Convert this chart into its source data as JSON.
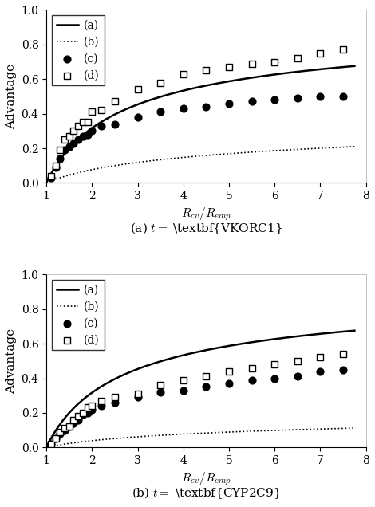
{
  "fig_width": 4.7,
  "fig_height": 6.36,
  "dpi": 100,
  "subplot_a": {
    "title": "(a) $t =$ \\textbf{VKORC1}",
    "ylabel": "Advantage",
    "xlabel": "$R_{cv}/R_{emp}$",
    "xlim": [
      1,
      8
    ],
    "ylim": [
      0,
      1
    ],
    "xticks": [
      1,
      2,
      3,
      4,
      5,
      6,
      7,
      8
    ],
    "yticks": [
      0,
      0.2,
      0.4,
      0.6,
      0.8,
      1.0
    ],
    "curve_a_x": [
      1.0,
      1.05,
      1.1,
      1.15,
      1.2,
      1.3,
      1.4,
      1.5,
      1.6,
      1.7,
      1.8,
      1.9,
      2.0,
      2.2,
      2.5,
      3.0,
      3.5,
      4.0,
      4.5,
      5.0,
      5.5,
      6.0,
      6.5,
      7.0,
      7.5
    ],
    "curve_b_x": [
      1.0,
      1.05,
      1.1,
      1.15,
      1.2,
      1.3,
      1.4,
      1.5,
      1.6,
      1.7,
      1.8,
      1.9,
      2.0,
      2.2,
      2.5,
      3.0,
      3.5,
      4.0,
      4.5,
      5.0,
      5.5,
      6.0,
      6.5,
      7.0,
      7.5
    ],
    "scatter_c_x": [
      1.1,
      1.2,
      1.3,
      1.4,
      1.5,
      1.6,
      1.7,
      1.8,
      1.9,
      2.0,
      2.2,
      2.5,
      3.0,
      3.5,
      4.0,
      4.5,
      5.0,
      5.5,
      6.0,
      6.5,
      7.0,
      7.5
    ],
    "scatter_c_y": [
      0.03,
      0.09,
      0.14,
      0.19,
      0.21,
      0.23,
      0.25,
      0.27,
      0.28,
      0.3,
      0.33,
      0.34,
      0.38,
      0.41,
      0.43,
      0.44,
      0.46,
      0.47,
      0.48,
      0.49,
      0.5,
      0.5
    ],
    "scatter_d_x": [
      1.1,
      1.2,
      1.3,
      1.4,
      1.5,
      1.6,
      1.7,
      1.8,
      1.9,
      2.0,
      2.2,
      2.5,
      3.0,
      3.5,
      4.0,
      4.5,
      5.0,
      5.5,
      6.0,
      6.5,
      7.0,
      7.5
    ],
    "scatter_d_y": [
      0.04,
      0.1,
      0.19,
      0.25,
      0.27,
      0.3,
      0.33,
      0.35,
      0.35,
      0.41,
      0.42,
      0.47,
      0.54,
      0.58,
      0.63,
      0.65,
      0.67,
      0.69,
      0.7,
      0.72,
      0.75,
      0.77
    ],
    "curve_a_alpha": 4.0,
    "curve_b_alpha": 30.0
  },
  "subplot_b": {
    "title": "(b) $t =$ \\textbf{CYP2C9}",
    "ylabel": "Advantage",
    "xlabel": "$R_{cv}/R_{emp}$",
    "xlim": [
      1,
      8
    ],
    "ylim": [
      0,
      1
    ],
    "xticks": [
      1,
      2,
      3,
      4,
      5,
      6,
      7,
      8
    ],
    "yticks": [
      0,
      0.2,
      0.4,
      0.6,
      0.8,
      1.0
    ],
    "scatter_c_x": [
      1.1,
      1.2,
      1.3,
      1.4,
      1.5,
      1.6,
      1.7,
      1.8,
      1.9,
      2.0,
      2.2,
      2.5,
      3.0,
      3.5,
      4.0,
      4.5,
      5.0,
      5.5,
      6.0,
      6.5,
      7.0,
      7.5
    ],
    "scatter_c_y": [
      0.02,
      0.05,
      0.08,
      0.1,
      0.12,
      0.14,
      0.16,
      0.19,
      0.2,
      0.22,
      0.24,
      0.26,
      0.29,
      0.32,
      0.33,
      0.35,
      0.37,
      0.39,
      0.4,
      0.41,
      0.44,
      0.45
    ],
    "scatter_d_x": [
      1.1,
      1.2,
      1.3,
      1.4,
      1.5,
      1.6,
      1.7,
      1.8,
      1.9,
      2.0,
      2.2,
      2.5,
      3.0,
      3.5,
      4.0,
      4.5,
      5.0,
      5.5,
      6.0,
      6.5,
      7.0,
      7.5
    ],
    "scatter_d_y": [
      0.02,
      0.05,
      0.09,
      0.11,
      0.12,
      0.16,
      0.18,
      0.2,
      0.23,
      0.24,
      0.27,
      0.29,
      0.31,
      0.36,
      0.39,
      0.41,
      0.44,
      0.46,
      0.48,
      0.5,
      0.52,
      0.54
    ],
    "curve_a_alpha": 6.0,
    "curve_b_alpha": 60.0
  },
  "legend_entries": [
    "(a)",
    "(b)",
    "(c)",
    "(d)"
  ],
  "line_color": "#000000",
  "marker_color": "#000000",
  "bg_color": "#ffffff",
  "fontsize_axis_label": 11,
  "fontsize_tick": 10,
  "fontsize_legend": 10,
  "fontsize_title": 11
}
